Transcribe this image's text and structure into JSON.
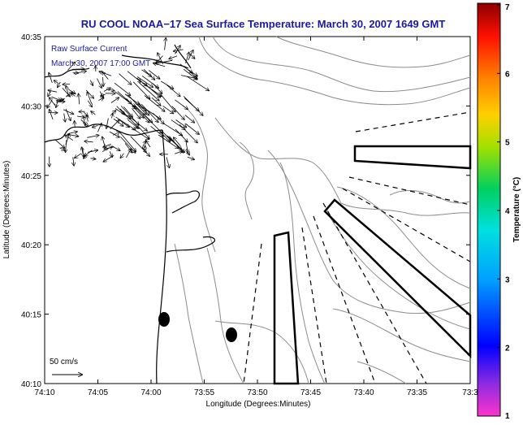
{
  "title": "RU COOL  NOAA−17  Sea Surface Temperature:  March 30, 2007 1649 GMT",
  "overlay": {
    "line1": "Raw Surface Current",
    "line2": "March 30, 2007 17:00 GMT"
  },
  "scale_label": "50 cm/s",
  "axes": {
    "xlabel": "Longitude (Degrees:Minutes)",
    "ylabel": "Latitude (Degrees:Minutes)",
    "x_ticks": [
      "74:10",
      "74:05",
      "74:00",
      "73:55",
      "73:50",
      "73:45",
      "73:40",
      "73:35",
      "73:3"
    ],
    "y_ticks": [
      "40:35",
      "40:30",
      "40:25",
      "40:20",
      "40:15",
      "40:10"
    ]
  },
  "colorbar": {
    "label": "Temperature (°C)",
    "ticks": [
      "7",
      "6",
      "5",
      "4",
      "3",
      "2",
      "1"
    ],
    "min": 1,
    "max": 7
  },
  "colors": {
    "title": "#1a1aa0",
    "overlay_text": "#1a1aa0",
    "contour": "#8c8c8c",
    "coast": "#000000"
  }
}
